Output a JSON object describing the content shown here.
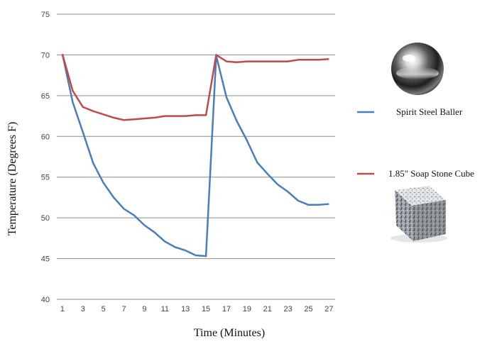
{
  "chart_data": {
    "type": "line",
    "title": "",
    "xlabel": "Time (Minutes)",
    "ylabel": "Temperature (Degrees F)",
    "xlim": [
      1,
      27
    ],
    "ylim": [
      40,
      75
    ],
    "x_ticks": [
      1,
      3,
      5,
      7,
      9,
      11,
      13,
      15,
      17,
      19,
      21,
      23,
      25,
      27
    ],
    "y_ticks": [
      40,
      45,
      50,
      55,
      60,
      65,
      70,
      75
    ],
    "grid": "horizontal",
    "legend_position": "right",
    "x": [
      1,
      2,
      3,
      4,
      5,
      6,
      7,
      8,
      9,
      10,
      11,
      12,
      13,
      14,
      15,
      16,
      17,
      18,
      19,
      20,
      21,
      22,
      23,
      24,
      25,
      26,
      27
    ],
    "series": [
      {
        "name": "Spirit Steel Baller",
        "color": "#4a7ebb",
        "icon": "steel-ball-image",
        "values": [
          70.1,
          64.2,
          60.5,
          56.7,
          54.3,
          52.5,
          51.1,
          50.3,
          49.1,
          48.2,
          47.1,
          46.4,
          46.0,
          45.4,
          45.3,
          69.9,
          64.8,
          61.9,
          59.5,
          56.8,
          55.4,
          54.1,
          53.2,
          52.1,
          51.6,
          51.6,
          51.7
        ]
      },
      {
        "name": "1.85\" Soap Stone Cube",
        "color": "#be4b48",
        "icon": "soap-stone-cube-image",
        "values": [
          70.1,
          65.6,
          63.6,
          63.1,
          62.7,
          62.3,
          62.0,
          62.1,
          62.2,
          62.3,
          62.5,
          62.5,
          62.5,
          62.6,
          62.6,
          70.0,
          69.2,
          69.1,
          69.2,
          69.2,
          69.2,
          69.2,
          69.2,
          69.4,
          69.4,
          69.4,
          69.5
        ]
      }
    ]
  }
}
